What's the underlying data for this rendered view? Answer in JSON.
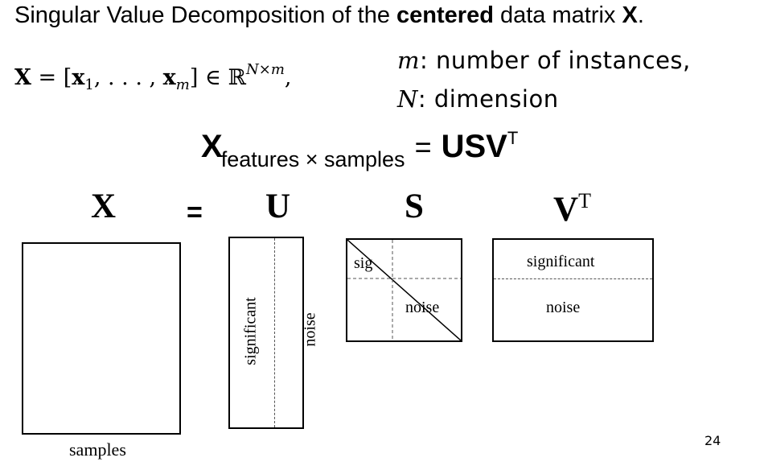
{
  "title": {
    "part1": "Singular Value Decomposition of the ",
    "bold1": "centered",
    "part2": " data matrix ",
    "bold2": "X",
    "part3": "."
  },
  "math": {
    "lhs": "X",
    "eq": " = [",
    "x1": "x",
    "sub1": "1",
    "dots": ", . . . , ",
    "xm": "x",
    "subm": "m",
    "close": "] ∈ ℝ",
    "sup": "N×m",
    "comma": ","
  },
  "definitions": {
    "m_symbol": "m",
    "m_text": ": number of instances,",
    "n_symbol": "N",
    "n_text": ": dimension"
  },
  "main_equation": {
    "lhs": "X",
    "subscript": "features × samples",
    "eq": "=",
    "rhs": "USV",
    "sup": "T"
  },
  "diagram": {
    "x_label": "X",
    "equals": "=",
    "u_label": "U",
    "s_label": "S",
    "v_label": "V",
    "v_sup": "T",
    "x_caption": "samples",
    "u_left": "significant",
    "u_right": "noise",
    "s_top": "sig",
    "s_bottom": "noise",
    "v_top": "significant",
    "v_bottom": "noise"
  },
  "page_number": "24"
}
